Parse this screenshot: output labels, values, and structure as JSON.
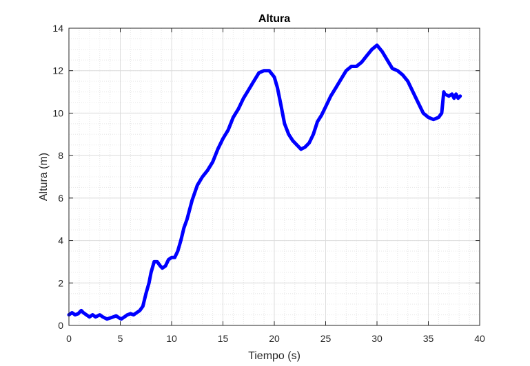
{
  "chart_data": {
    "type": "line",
    "title": "Altura",
    "xlabel": "Tiempo (s)",
    "ylabel": "Altura (m)",
    "xlim": [
      0,
      40
    ],
    "ylim": [
      0,
      14
    ],
    "xticks": [
      "0",
      "5",
      "10",
      "15",
      "20",
      "25",
      "30",
      "35",
      "40"
    ],
    "yticks": [
      "0",
      "2",
      "4",
      "6",
      "8",
      "10",
      "12",
      "14"
    ],
    "grid": true,
    "minor_grid": true,
    "series": [
      {
        "color": "#0000ff",
        "x": [
          0.0,
          0.3,
          0.6,
          0.9,
          1.2,
          1.4,
          1.7,
          2.0,
          2.3,
          2.6,
          3.0,
          3.3,
          3.7,
          4.0,
          4.3,
          4.6,
          4.9,
          5.1,
          5.4,
          5.7,
          6.0,
          6.3,
          6.6,
          6.9,
          7.2,
          7.5,
          7.8,
          8.0,
          8.3,
          8.6,
          8.9,
          9.1,
          9.4,
          9.7,
          10.0,
          10.3,
          10.6,
          10.9,
          11.2,
          11.5,
          12.0,
          12.5,
          13.0,
          13.5,
          14.0,
          14.5,
          15.0,
          15.5,
          16.0,
          16.5,
          17.0,
          17.5,
          18.0,
          18.5,
          19.0,
          19.5,
          20.0,
          20.3,
          20.6,
          21.0,
          21.4,
          21.8,
          22.2,
          22.6,
          23.0,
          23.4,
          23.8,
          24.2,
          24.6,
          25.0,
          25.5,
          26.0,
          26.5,
          27.0,
          27.5,
          28.0,
          28.5,
          29.0,
          29.5,
          30.0,
          30.5,
          31.0,
          31.5,
          32.0,
          32.5,
          33.0,
          33.5,
          34.0,
          34.5,
          35.0,
          35.5,
          36.0,
          36.3,
          36.5,
          36.6,
          37.0,
          37.3,
          37.5,
          37.7,
          37.9,
          38.1
        ],
        "y": [
          0.5,
          0.6,
          0.5,
          0.55,
          0.7,
          0.6,
          0.5,
          0.4,
          0.5,
          0.4,
          0.5,
          0.4,
          0.3,
          0.35,
          0.4,
          0.45,
          0.35,
          0.3,
          0.4,
          0.5,
          0.55,
          0.5,
          0.6,
          0.7,
          0.9,
          1.5,
          2.0,
          2.5,
          3.0,
          3.0,
          2.8,
          2.7,
          2.8,
          3.1,
          3.2,
          3.2,
          3.5,
          4.0,
          4.6,
          5.0,
          5.9,
          6.6,
          7.0,
          7.3,
          7.7,
          8.3,
          8.8,
          9.2,
          9.8,
          10.2,
          10.7,
          11.1,
          11.5,
          11.9,
          12.0,
          12.0,
          11.7,
          11.2,
          10.5,
          9.5,
          9.0,
          8.7,
          8.5,
          8.3,
          8.4,
          8.6,
          9.0,
          9.6,
          9.9,
          10.3,
          10.8,
          11.2,
          11.6,
          12.0,
          12.2,
          12.2,
          12.4,
          12.7,
          13.0,
          13.2,
          12.9,
          12.5,
          12.1,
          12.0,
          11.8,
          11.5,
          11.0,
          10.5,
          10.0,
          9.8,
          9.7,
          9.8,
          10.0,
          11.0,
          10.9,
          10.8,
          10.9,
          10.7,
          10.9,
          10.7,
          10.8
        ]
      }
    ]
  }
}
